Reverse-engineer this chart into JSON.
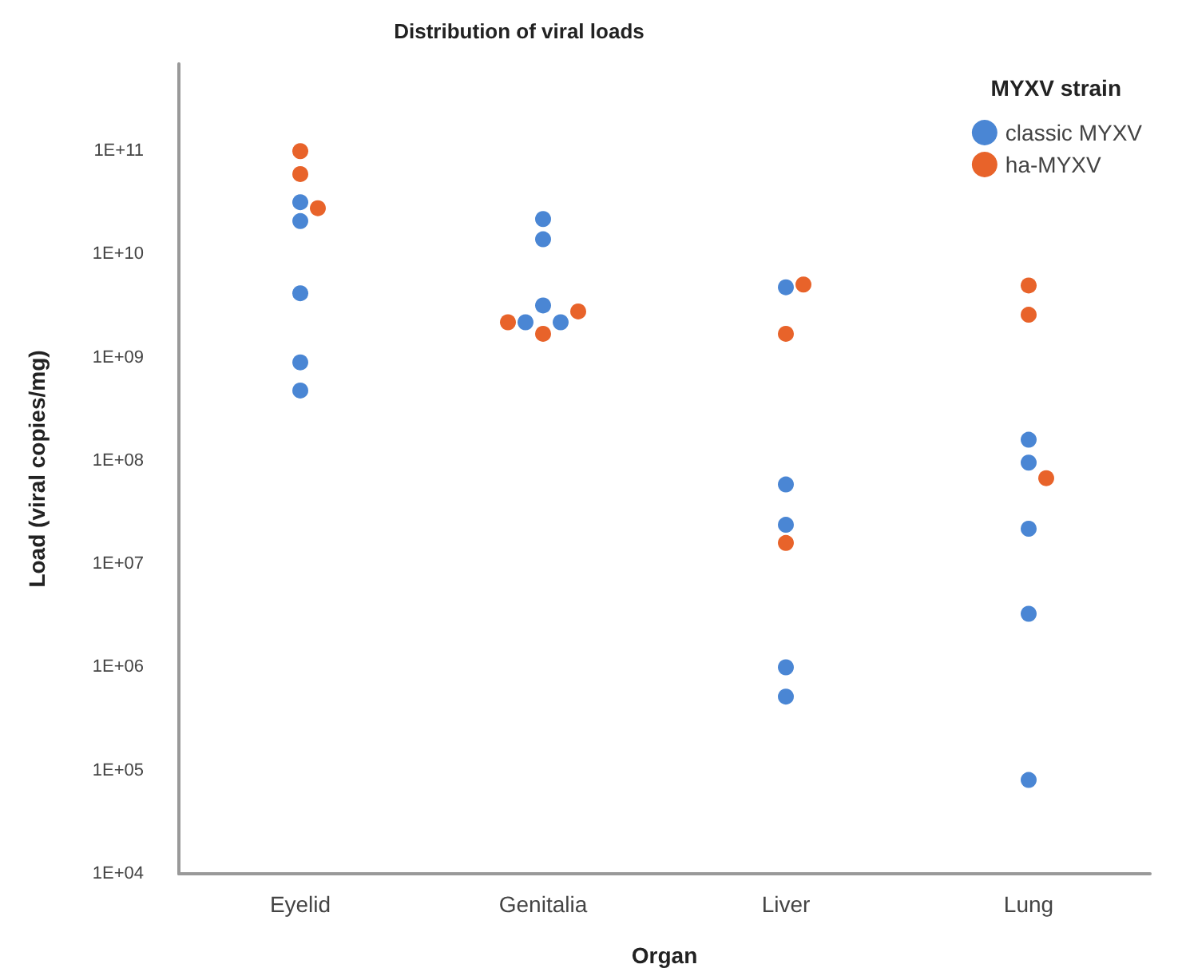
{
  "chart_data": {
    "type": "scatter",
    "title": "Distribution of viral loads",
    "xlabel": "Organ",
    "ylabel": "Load (viral copies/mg)",
    "legend_title": "MYXV strain",
    "legend": "top right",
    "marker": "circle",
    "grid": false,
    "log": "y",
    "categories": [
      "Eyelid",
      "Genitalia",
      "Liver",
      "Lung"
    ],
    "ylim": [
      10000,
      700000000000
    ],
    "yticks": [
      {
        "value": 10000,
        "label": "1E+04"
      },
      {
        "value": 100000,
        "label": "1E+05"
      },
      {
        "value": 1000000,
        "label": "1E+06"
      },
      {
        "value": 10000000,
        "label": "1E+07"
      },
      {
        "value": 100000000,
        "label": "1E+08"
      },
      {
        "value": 1000000000,
        "label": "1E+09"
      },
      {
        "value": 10000000000,
        "label": "1E+10"
      },
      {
        "value": 100000000000,
        "label": "1E+11"
      }
    ],
    "series": [
      {
        "name": "classic MYXV",
        "color": "#4a86d4",
        "x": [
          "Eyelid",
          "Eyelid",
          "Eyelid",
          "Eyelid",
          "Eyelid",
          "Genitalia",
          "Genitalia",
          "Genitalia",
          "Genitalia",
          "Genitalia",
          "Liver",
          "Liver",
          "Liver",
          "Liver",
          "Liver",
          "Lung",
          "Lung",
          "Lung",
          "Lung",
          "Lung"
        ],
        "values": [
          32000000000,
          21000000000,
          4200000000,
          900000000,
          480000000,
          22000000000,
          14000000000,
          3200000000,
          2200000000,
          2200000000,
          4800000000,
          59000000,
          24000000,
          1000000,
          520000,
          160000000,
          96000000,
          22000000,
          3300000,
          81000
        ]
      },
      {
        "name": "ha-MYXV",
        "color": "#e8632a",
        "x": [
          "Eyelid",
          "Eyelid",
          "Eyelid",
          "Genitalia",
          "Genitalia",
          "Genitalia",
          "Liver",
          "Liver",
          "Liver",
          "Lung",
          "Lung",
          "Lung"
        ],
        "values": [
          100000000000,
          60000000000,
          28000000000,
          2800000000,
          2200000000,
          1700000000,
          5100000000,
          1700000000,
          16000000,
          5000000000,
          2600000000,
          68000000
        ]
      }
    ]
  }
}
